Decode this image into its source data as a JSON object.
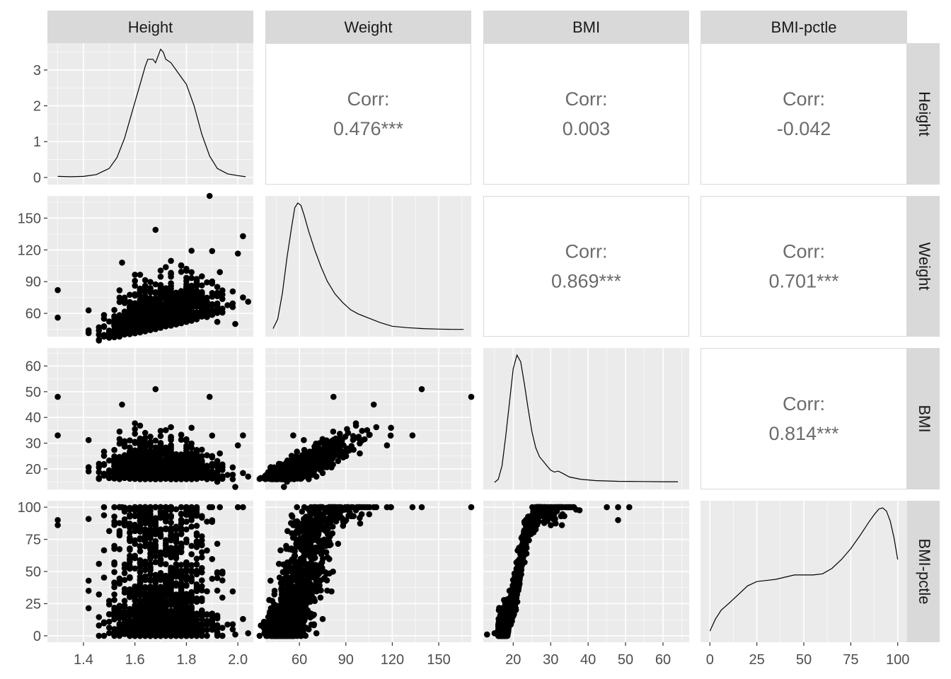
{
  "chart_data": {
    "type": "scatter-matrix",
    "variables": [
      "Height",
      "Weight",
      "BMI",
      "BMI-pctle"
    ],
    "colors": {
      "panel_bg": "#EBEBEB",
      "grid": "#FFFFFF",
      "strip_bg": "#D9D9D9",
      "point": "#000000",
      "corr_text": "#6B6B6B",
      "tick_text": "#4D4D4D",
      "border": "#D9D9D9"
    },
    "axes": {
      "Height": {
        "range": [
          1.26,
          2.06
        ],
        "ticks": [
          1.4,
          1.6,
          1.8,
          2.0
        ],
        "tick_labels": [
          "1.4",
          "1.6",
          "1.8",
          "2.0"
        ]
      },
      "Weight": {
        "range": [
          38,
          171
        ],
        "ticks": [
          60,
          90,
          120,
          150
        ],
        "tick_labels": [
          "60",
          "90",
          "120",
          "150"
        ]
      },
      "BMI": {
        "range": [
          12,
          67
        ],
        "ticks": [
          20,
          30,
          40,
          50,
          60
        ],
        "tick_labels": [
          "20",
          "30",
          "40",
          "50",
          "60"
        ]
      },
      "BMI-pctle": {
        "range": [
          -5,
          105
        ],
        "ticks": [
          0,
          25,
          50,
          75,
          100
        ],
        "tick_labels": [
          "0",
          "25",
          "50",
          "75",
          "100"
        ]
      }
    },
    "density_axis": {
      "range": [
        -0.2,
        3.75
      ],
      "ticks": [
        0,
        1,
        2,
        3
      ],
      "tick_labels": [
        "0",
        "1",
        "2",
        "3"
      ]
    },
    "correlations": [
      {
        "row": "Height",
        "col": "Weight",
        "label": "Corr:",
        "value": "0.476***"
      },
      {
        "row": "Height",
        "col": "BMI",
        "label": "Corr:",
        "value": "0.003"
      },
      {
        "row": "Height",
        "col": "BMI-pctle",
        "label": "Corr:",
        "value": "-0.042"
      },
      {
        "row": "Weight",
        "col": "BMI",
        "label": "Corr:",
        "value": "0.869***"
      },
      {
        "row": "Weight",
        "col": "BMI-pctle",
        "label": "Corr:",
        "value": "0.701***"
      },
      {
        "row": "BMI",
        "col": "BMI-pctle",
        "label": "Corr:",
        "value": "0.814***"
      }
    ],
    "densities": {
      "Height": [
        [
          1.3,
          0.03
        ],
        [
          1.35,
          0.02
        ],
        [
          1.4,
          0.03
        ],
        [
          1.45,
          0.08
        ],
        [
          1.5,
          0.25
        ],
        [
          1.53,
          0.55
        ],
        [
          1.56,
          1.1
        ],
        [
          1.59,
          1.85
        ],
        [
          1.62,
          2.6
        ],
        [
          1.64,
          3.1
        ],
        [
          1.65,
          3.3
        ],
        [
          1.67,
          3.3
        ],
        [
          1.68,
          3.2
        ],
        [
          1.7,
          3.58
        ],
        [
          1.71,
          3.5
        ],
        [
          1.72,
          3.3
        ],
        [
          1.74,
          3.2
        ],
        [
          1.76,
          3.0
        ],
        [
          1.78,
          2.8
        ],
        [
          1.8,
          2.6
        ],
        [
          1.83,
          2.0
        ],
        [
          1.86,
          1.2
        ],
        [
          1.89,
          0.6
        ],
        [
          1.92,
          0.25
        ],
        [
          1.96,
          0.1
        ],
        [
          2.0,
          0.05
        ],
        [
          2.03,
          0.02
        ]
      ],
      "Weight": [
        [
          43,
          0.05
        ],
        [
          46,
          0.25
        ],
        [
          49,
          0.8
        ],
        [
          52,
          1.55
        ],
        [
          55,
          2.2
        ],
        [
          57,
          2.6
        ],
        [
          59,
          2.7
        ],
        [
          61,
          2.65
        ],
        [
          63,
          2.45
        ],
        [
          66,
          2.1
        ],
        [
          70,
          1.7
        ],
        [
          74,
          1.35
        ],
        [
          78,
          1.05
        ],
        [
          83,
          0.78
        ],
        [
          88,
          0.6
        ],
        [
          93,
          0.45
        ],
        [
          98,
          0.36
        ],
        [
          105,
          0.27
        ],
        [
          112,
          0.18
        ],
        [
          120,
          0.1
        ],
        [
          130,
          0.07
        ],
        [
          140,
          0.05
        ],
        [
          150,
          0.04
        ],
        [
          160,
          0.035
        ],
        [
          166,
          0.035
        ]
      ],
      "BMI": [
        [
          15,
          0.03
        ],
        [
          16,
          0.1
        ],
        [
          17,
          0.4
        ],
        [
          18,
          1.05
        ],
        [
          19,
          1.8
        ],
        [
          20,
          2.55
        ],
        [
          21,
          2.85
        ],
        [
          22,
          2.7
        ],
        [
          23,
          2.2
        ],
        [
          24,
          1.65
        ],
        [
          25,
          1.15
        ],
        [
          26,
          0.8
        ],
        [
          27,
          0.6
        ],
        [
          28,
          0.5
        ],
        [
          29,
          0.4
        ],
        [
          30,
          0.3
        ],
        [
          31,
          0.26
        ],
        [
          32,
          0.28
        ],
        [
          33,
          0.24
        ],
        [
          35,
          0.15
        ],
        [
          38,
          0.1
        ],
        [
          42,
          0.07
        ],
        [
          48,
          0.055
        ],
        [
          55,
          0.05
        ],
        [
          60,
          0.045
        ],
        [
          64,
          0.045
        ]
      ],
      "BMI-pctle": [
        [
          0,
          0.05
        ],
        [
          3,
          0.16
        ],
        [
          6,
          0.24
        ],
        [
          10,
          0.3
        ],
        [
          15,
          0.38
        ],
        [
          20,
          0.46
        ],
        [
          25,
          0.5
        ],
        [
          30,
          0.51
        ],
        [
          35,
          0.52
        ],
        [
          40,
          0.54
        ],
        [
          45,
          0.56
        ],
        [
          50,
          0.56
        ],
        [
          55,
          0.56
        ],
        [
          60,
          0.57
        ],
        [
          65,
          0.62
        ],
        [
          70,
          0.7
        ],
        [
          75,
          0.8
        ],
        [
          80,
          0.92
        ],
        [
          85,
          1.05
        ],
        [
          88,
          1.12
        ],
        [
          90,
          1.16
        ],
        [
          92,
          1.17
        ],
        [
          94,
          1.14
        ],
        [
          96,
          1.05
        ],
        [
          98,
          0.9
        ],
        [
          100,
          0.7
        ]
      ]
    }
  }
}
